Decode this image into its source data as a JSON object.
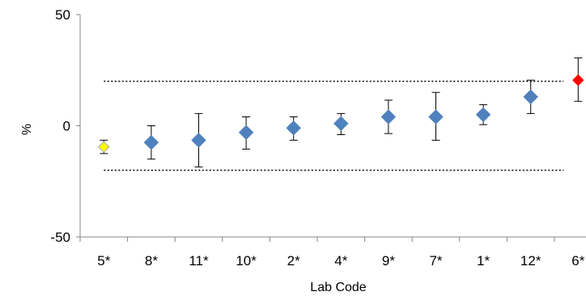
{
  "chart_data": {
    "type": "scatter",
    "title": "",
    "xlabel": "Lab Code",
    "ylabel": "%",
    "ylim": [
      -50,
      50
    ],
    "yticks": [
      -50,
      0,
      50
    ],
    "grid": false,
    "legend": "none",
    "categories": [
      "5*",
      "8*",
      "11*",
      "10*",
      "2*",
      "4*",
      "9*",
      "7*",
      "1*",
      "12*",
      "6*"
    ],
    "points": [
      {
        "label": "5*",
        "value": -9.5,
        "low": -12.5,
        "high": -6.5,
        "color": "#ffff00"
      },
      {
        "label": "8*",
        "value": -7.5,
        "low": -15.0,
        "high": 0.0,
        "color": "#4f81bd"
      },
      {
        "label": "11*",
        "value": -6.5,
        "low": -18.5,
        "high": 5.5,
        "color": "#4f81bd"
      },
      {
        "label": "10*",
        "value": -3.0,
        "low": -10.5,
        "high": 4.0,
        "color": "#4f81bd"
      },
      {
        "label": "2*",
        "value": -1.0,
        "low": -6.5,
        "high": 4.0,
        "color": "#4f81bd"
      },
      {
        "label": "4*",
        "value": 1.0,
        "low": -4.0,
        "high": 5.5,
        "color": "#4f81bd"
      },
      {
        "label": "9*",
        "value": 4.0,
        "low": -3.5,
        "high": 11.5,
        "color": "#4f81bd"
      },
      {
        "label": "7*",
        "value": 4.0,
        "low": -6.5,
        "high": 15.0,
        "color": "#4f81bd"
      },
      {
        "label": "1*",
        "value": 5.0,
        "low": 0.5,
        "high": 9.5,
        "color": "#4f81bd"
      },
      {
        "label": "12*",
        "value": 13.0,
        "low": 5.5,
        "high": 20.5,
        "color": "#4f81bd"
      },
      {
        "label": "6*",
        "value": 20.5,
        "low": 11.0,
        "high": 30.5,
        "color": "#ff0000"
      }
    ],
    "reference_lines": [
      20,
      -20
    ]
  }
}
